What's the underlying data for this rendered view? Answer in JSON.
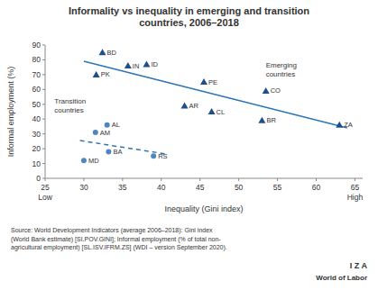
{
  "chart_data": {
    "type": "scatter",
    "title": "Informality vs inequality in emerging and transition\ncountries, 2006–2018",
    "xlabel": "Inequality (Gini index)",
    "ylabel": "Informal employment (%)",
    "xlim": [
      25,
      66
    ],
    "ylim": [
      0,
      90
    ],
    "xticks": [
      25,
      30,
      35,
      40,
      45,
      50,
      55,
      60,
      65
    ],
    "yticks": [
      0,
      10,
      20,
      30,
      40,
      50,
      60,
      70,
      80,
      90
    ],
    "grid": false,
    "series": [
      {
        "type": "line",
        "line_style": "solid",
        "color": "#2e75b6",
        "x": [
          30.0,
          64.0
        ],
        "values": [
          79.0,
          34.0
        ]
      },
      {
        "type": "line",
        "line_style": "dashed",
        "color": "#2e75b6",
        "x": [
          29.5,
          40.5
        ],
        "values": [
          25.5,
          16.5
        ]
      },
      {
        "type": "scatter",
        "marker": "triangle",
        "color": "#1f4e8c",
        "labels": [
          "BD",
          "IN",
          "ID",
          "PK",
          "PE",
          "CO",
          "AR",
          "CL",
          "BR",
          "ZA"
        ],
        "x": [
          32.4,
          35.7,
          38.1,
          31.6,
          45.5,
          53.5,
          43.0,
          46.5,
          53.0,
          63.0
        ],
        "values": [
          85,
          76,
          77,
          70,
          65,
          59,
          49,
          45,
          39,
          36
        ]
      },
      {
        "type": "scatter",
        "marker": "circle",
        "color": "#4f86c0",
        "labels": [
          "AL",
          "AM",
          "BA",
          "MD",
          "RS"
        ],
        "x": [
          33.0,
          31.5,
          33.2,
          30.0,
          39.0
        ],
        "values": [
          36,
          31,
          18,
          12,
          15
        ]
      }
    ],
    "annotations": [
      {
        "text": "Emerging\ncountries",
        "x": 53.5,
        "y": 79
      },
      {
        "text": "Transition\ncountries",
        "x": 26.2,
        "y": 55
      }
    ],
    "axis_notes": [
      {
        "text": "Low",
        "x": 25
      },
      {
        "text": "High",
        "x": 65
      }
    ],
    "source": "Source: World Development Indicators (average 2006–2018): Gini index\n(World Bank estimate) [SI.POV.GINI]; Informal employment (% of total non-\nagricultural employment) [SL.ISV.IFRM.ZS] (WDI – version September 2020).",
    "logo": [
      "I Z A",
      "World of Labor"
    ]
  }
}
